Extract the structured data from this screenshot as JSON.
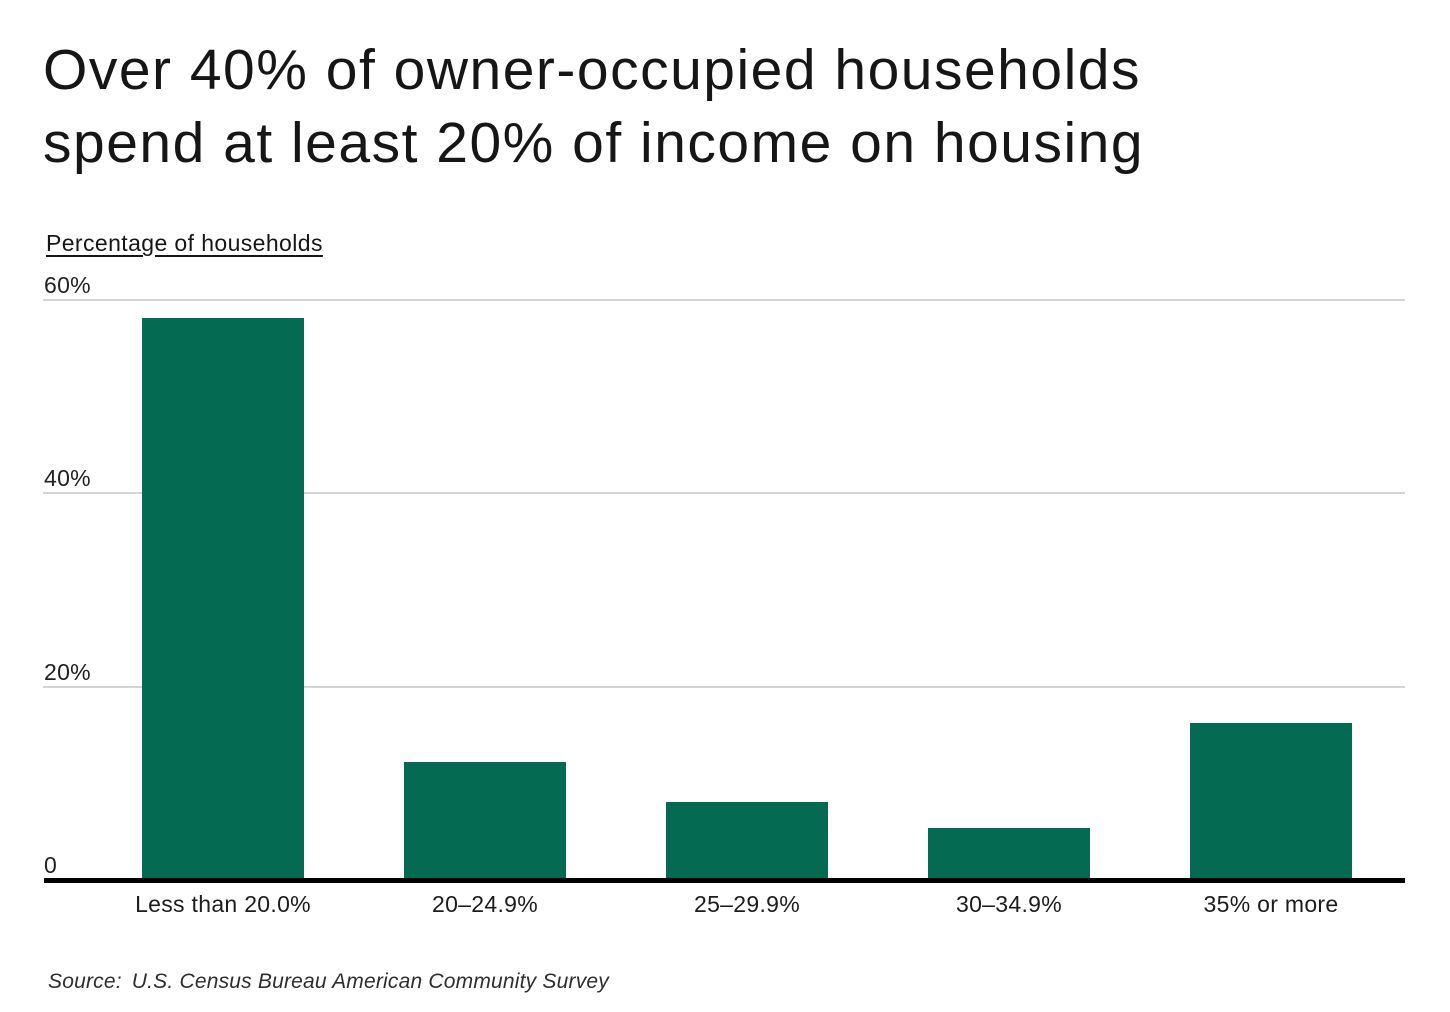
{
  "title": {
    "line1": "Over 40% of owner-occupied households",
    "line2": "spend at least 20% of income on housing"
  },
  "axis_label": "Percentage of households",
  "source": {
    "label": "Source:",
    "text": "U.S. Census Bureau American Community Survey"
  },
  "colors": {
    "bar": "#056a52",
    "gridline": "#d5d5d5",
    "axis": "#000000",
    "text": "#161616"
  },
  "chart_data": {
    "type": "bar",
    "title": "Over 40% of owner-occupied households spend at least 20% of income on housing",
    "xlabel": "",
    "ylabel": "Percentage of households",
    "categories": [
      "Less than 20.0%",
      "20–24.9%",
      "25–29.9%",
      "30–34.9%",
      "35% or more"
    ],
    "values": [
      58.1,
      12.2,
      8.1,
      5.4,
      16.2
    ],
    "ylim": [
      0,
      60
    ],
    "yticks": [
      {
        "value": 60,
        "label": "60%"
      },
      {
        "value": 40,
        "label": "40%"
      },
      {
        "value": 20,
        "label": "20%"
      },
      {
        "value": 0,
        "label": "0"
      }
    ],
    "grid": true,
    "legend": false,
    "bar_color": "#056a52",
    "source": "Source:  U.S. Census Bureau American Community Survey"
  }
}
